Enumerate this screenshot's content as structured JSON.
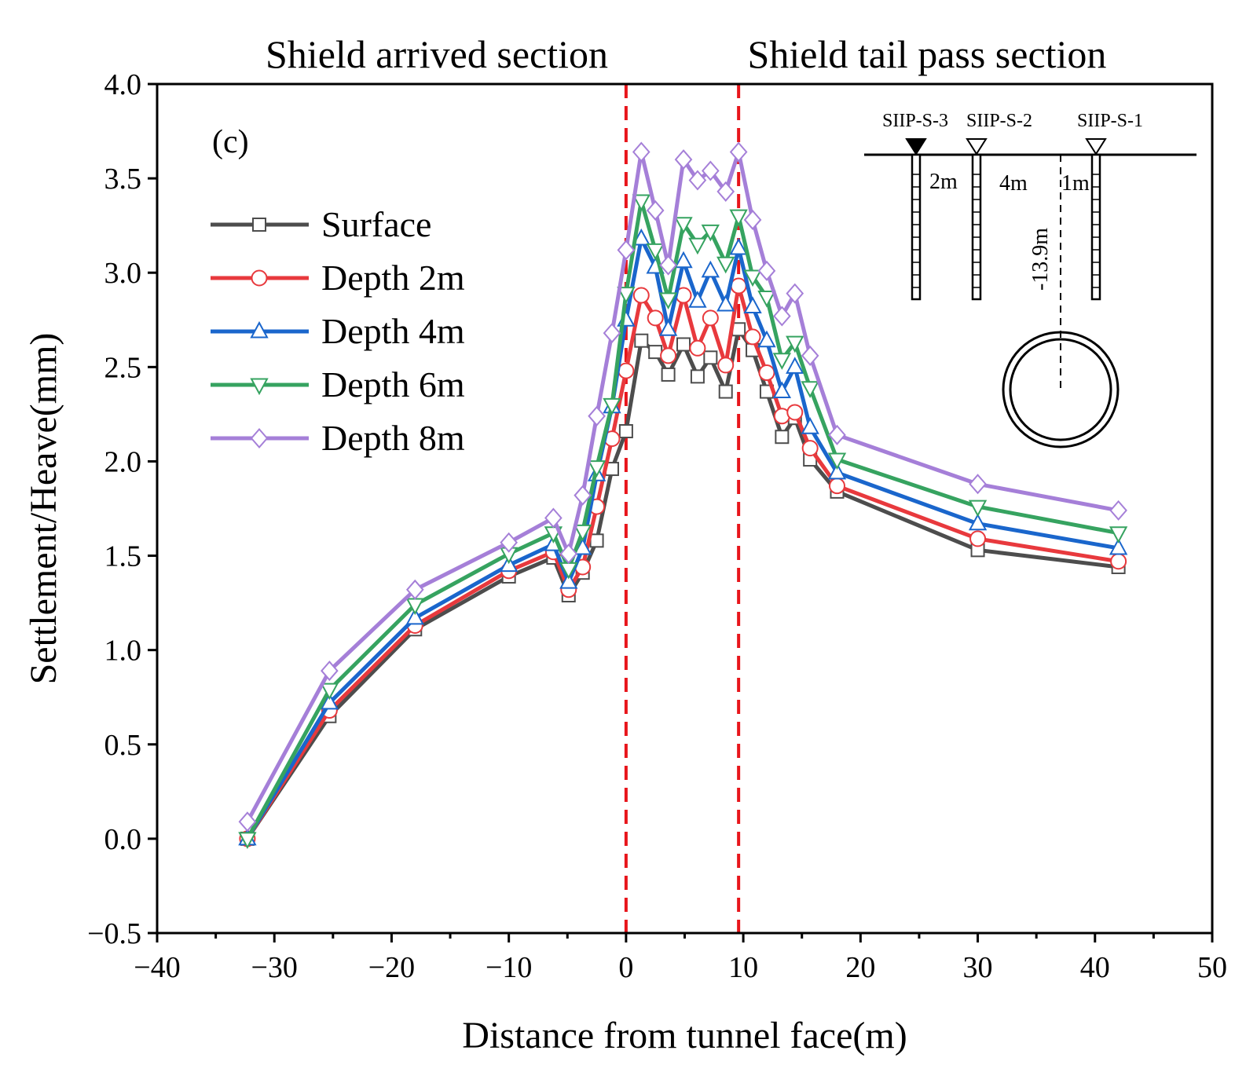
{
  "chart_data": {
    "type": "line",
    "panel_label": "(c)",
    "section_labels": {
      "left": "Shield arrived section",
      "right": "Shield tail pass section"
    },
    "xlabel": "Distance from tunnel face(m)",
    "ylabel": "Settlement/Heave(mm)",
    "xlim": [
      -40,
      50
    ],
    "ylim": [
      -0.5,
      4.0
    ],
    "xticks": [
      -40,
      -30,
      -20,
      -10,
      0,
      10,
      20,
      30,
      40,
      50
    ],
    "xtick_labels": [
      "−40",
      "−30",
      "−20",
      "−10",
      "0",
      "10",
      "20",
      "30",
      "40",
      "50"
    ],
    "yticks": [
      -0.5,
      0.0,
      0.5,
      1.0,
      1.5,
      2.0,
      2.5,
      3.0,
      3.5,
      4.0
    ],
    "ytick_labels": [
      "−0.5",
      "0.0",
      "0.5",
      "1.0",
      "1.5",
      "2.0",
      "2.5",
      "3.0",
      "3.5",
      "4.0"
    ],
    "vertical_reference_lines": [
      0,
      9.6
    ],
    "reference_line_color": "#e8151b",
    "legend_position": "upper-left",
    "grid": false,
    "x": [
      -32.3,
      -25.3,
      -18.0,
      -10.0,
      -6.2,
      -4.9,
      -3.7,
      -2.5,
      -1.2,
      0.0,
      1.3,
      2.5,
      3.6,
      4.9,
      6.1,
      7.2,
      8.5,
      9.6,
      10.8,
      12.0,
      13.3,
      14.4,
      15.7,
      18.0,
      30.0,
      42.0
    ],
    "series": [
      {
        "name": "Surface",
        "marker": "square",
        "color": "#4d4d4d",
        "values": [
          0.0,
          0.65,
          1.11,
          1.39,
          1.49,
          1.29,
          1.41,
          1.58,
          1.96,
          2.16,
          2.64,
          2.58,
          2.46,
          2.62,
          2.45,
          2.55,
          2.37,
          2.7,
          2.59,
          2.37,
          2.13,
          2.23,
          2.01,
          1.84,
          1.53,
          1.44
        ]
      },
      {
        "name": "Depth 2m",
        "marker": "circle",
        "color": "#e8393d",
        "values": [
          0.0,
          0.68,
          1.13,
          1.42,
          1.52,
          1.32,
          1.44,
          1.76,
          2.12,
          2.48,
          2.88,
          2.76,
          2.56,
          2.88,
          2.6,
          2.76,
          2.51,
          2.93,
          2.66,
          2.47,
          2.24,
          2.26,
          2.07,
          1.87,
          1.59,
          1.47
        ]
      },
      {
        "name": "Depth 4m",
        "marker": "triangle-up",
        "color": "#1a66cc",
        "values": [
          0.0,
          0.72,
          1.17,
          1.45,
          1.56,
          1.36,
          1.54,
          1.93,
          2.29,
          2.75,
          3.18,
          3.03,
          2.7,
          3.06,
          2.85,
          3.01,
          2.83,
          3.13,
          2.82,
          2.64,
          2.37,
          2.5,
          2.18,
          1.94,
          1.67,
          1.54
        ]
      },
      {
        "name": "Depth 6m",
        "marker": "triangle-down",
        "color": "#36a360",
        "values": [
          0.0,
          0.79,
          1.24,
          1.51,
          1.62,
          1.43,
          1.63,
          1.97,
          2.3,
          2.89,
          3.38,
          3.12,
          2.86,
          3.26,
          3.15,
          3.22,
          3.05,
          3.3,
          2.98,
          2.87,
          2.54,
          2.63,
          2.39,
          2.01,
          1.76,
          1.62
        ]
      },
      {
        "name": "Depth 8m",
        "marker": "diamond",
        "color": "#a57fd8",
        "values": [
          0.09,
          0.89,
          1.32,
          1.57,
          1.7,
          1.51,
          1.82,
          2.24,
          2.68,
          3.12,
          3.64,
          3.33,
          3.04,
          3.6,
          3.49,
          3.54,
          3.43,
          3.64,
          3.28,
          3.01,
          2.77,
          2.89,
          2.56,
          2.14,
          1.88,
          1.74
        ]
      }
    ],
    "inset": {
      "piles": [
        {
          "label": "SIIP-S-3",
          "marker": "filled"
        },
        {
          "label": "SIIP-S-2",
          "marker": "open"
        },
        {
          "label": "SIIP-S-1",
          "marker": "open"
        }
      ],
      "spacings": [
        "2m",
        "4m",
        "1m"
      ],
      "depth_label": "-13.9m"
    }
  }
}
